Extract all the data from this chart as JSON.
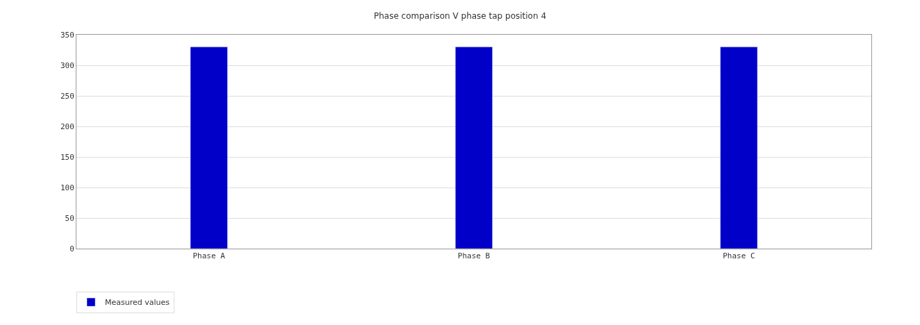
{
  "chart_data": {
    "type": "bar",
    "title": "Phase comparison V phase tap position 4",
    "categories": [
      "Phase A",
      "Phase B",
      "Phase C"
    ],
    "series": [
      {
        "name": "Measured values",
        "color": "#0000c8",
        "values": [
          330,
          330,
          330
        ]
      }
    ],
    "ylim": [
      0,
      350
    ],
    "yticks": [
      0,
      50,
      100,
      150,
      200,
      250,
      300,
      350
    ],
    "grid": "y",
    "legend": "bottom"
  }
}
